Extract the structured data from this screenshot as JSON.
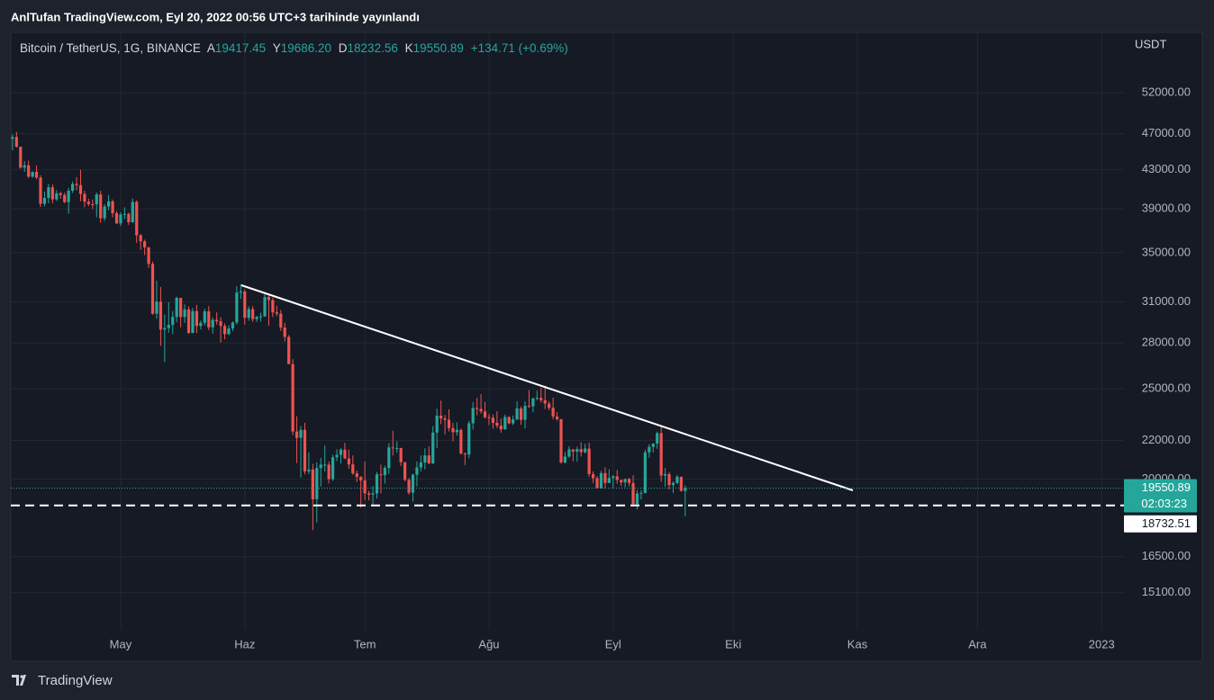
{
  "header": {
    "title": "AnlTufan TradingView.com, Eyl 20, 2022 00:56 UTC+3 tarihinde yayınlandı"
  },
  "footer": {
    "brand": "TradingView"
  },
  "chart_data": {
    "type": "candlestick",
    "unit": "USDT",
    "legend": {
      "symbol": "Bitcoin / TetherUS, 1G, BINANCE",
      "items": [
        {
          "label": "A",
          "value": "19417.45"
        },
        {
          "label": "Y",
          "value": "19686.20"
        },
        {
          "label": "D",
          "value": "18232.56"
        },
        {
          "label": "K",
          "value": "19550.89"
        }
      ],
      "change": "+134.71 (+0.69%)"
    },
    "up_color": "#26a69a",
    "down_color": "#ef5350",
    "log": true,
    "grid": true,
    "ylim": [
      13770,
      60370
    ],
    "yticks": [
      {
        "value": 15100,
        "label": "15100.00"
      },
      {
        "value": 16500,
        "label": "16500.00"
      },
      {
        "value": 20000,
        "label": "20000.00"
      },
      {
        "value": 22000,
        "label": "22000.00"
      },
      {
        "value": 25000,
        "label": "25000.00"
      },
      {
        "value": 28000,
        "label": "28000.00"
      },
      {
        "value": 31000,
        "label": "31000.00"
      },
      {
        "value": 35000,
        "label": "35000.00"
      },
      {
        "value": 39000,
        "label": "39000.00"
      },
      {
        "value": 43000,
        "label": "43000.00"
      },
      {
        "value": 47000,
        "label": "47000.00"
      },
      {
        "value": 52000,
        "label": "52000.00"
      }
    ],
    "last_price": {
      "value": 19550.89,
      "label": "19550.89",
      "countdown": "02:03:23"
    },
    "hline": {
      "value": 18732.51,
      "label": "18732.51"
    },
    "categories": [
      null,
      null,
      null,
      null,
      null,
      null,
      null,
      null,
      null,
      null,
      null,
      null,
      null,
      null,
      null,
      null,
      null,
      null,
      null,
      null,
      null,
      null,
      null,
      null,
      null,
      null,
      null,
      "May",
      null,
      null,
      null,
      null,
      null,
      null,
      null,
      null,
      null,
      null,
      null,
      null,
      null,
      null,
      null,
      null,
      null,
      null,
      null,
      null,
      null,
      null,
      null,
      null,
      null,
      null,
      null,
      null,
      null,
      null,
      "Haz",
      null,
      null,
      null,
      null,
      null,
      null,
      null,
      null,
      null,
      null,
      null,
      null,
      null,
      null,
      null,
      null,
      null,
      null,
      null,
      null,
      null,
      null,
      null,
      null,
      null,
      null,
      null,
      null,
      null,
      "Tem",
      null,
      null,
      null,
      null,
      null,
      null,
      null,
      null,
      null,
      null,
      null,
      null,
      null,
      null,
      null,
      null,
      null,
      null,
      null,
      null,
      null,
      null,
      null,
      null,
      null,
      null,
      null,
      null,
      null,
      null,
      "Ağu",
      null,
      null,
      null,
      null,
      null,
      null,
      null,
      null,
      null,
      null,
      null,
      null,
      null,
      null,
      null,
      null,
      null,
      null,
      null,
      null,
      null,
      null,
      null,
      null,
      null,
      null,
      null,
      null,
      null,
      null,
      "Eyl",
      null,
      null,
      null,
      null,
      null,
      null,
      null,
      null,
      null,
      null,
      null,
      null,
      null,
      null,
      null,
      null,
      null,
      null,
      null,
      null,
      null,
      null,
      null,
      null,
      null,
      null,
      null,
      null,
      null,
      "Eki",
      null,
      null,
      null,
      null,
      null,
      null,
      null,
      null,
      null,
      null,
      null,
      null,
      null,
      null,
      null,
      null,
      null,
      null,
      null,
      null,
      null,
      null,
      null,
      null,
      null,
      null,
      null,
      null,
      null,
      null,
      "Kas",
      null,
      null,
      null,
      null,
      null,
      null,
      null,
      null,
      null,
      null,
      null,
      null,
      null,
      null,
      null,
      null,
      null,
      null,
      null,
      null,
      null,
      null,
      null,
      null,
      null,
      null,
      null,
      null,
      null,
      "Ara",
      null,
      null,
      null,
      null,
      null,
      null,
      null,
      null,
      null,
      null,
      null,
      null,
      null,
      null,
      null,
      null,
      null,
      null,
      null,
      null,
      null,
      null,
      null,
      null,
      null,
      null,
      null,
      null,
      null,
      null,
      "2023",
      null,
      null,
      null,
      null,
      null
    ],
    "ohlc": [
      [
        46400,
        46900,
        45100,
        46600
      ],
      [
        46600,
        47200,
        45400,
        45500
      ],
      [
        45500,
        45500,
        43100,
        43200
      ],
      [
        43200,
        43900,
        42750,
        43450
      ],
      [
        43450,
        43970,
        42120,
        42250
      ],
      [
        42250,
        42800,
        42130,
        42750
      ],
      [
        42750,
        43430,
        42000,
        42150
      ],
      [
        42150,
        42400,
        39200,
        39500
      ],
      [
        39500,
        40700,
        39250,
        40080
      ],
      [
        40080,
        41500,
        39550,
        41150
      ],
      [
        41150,
        41450,
        39550,
        39940
      ],
      [
        39940,
        40860,
        39770,
        40550
      ],
      [
        40550,
        40700,
        40010,
        40380
      ],
      [
        40380,
        40600,
        39550,
        39680
      ],
      [
        39680,
        41100,
        38550,
        40800
      ],
      [
        40800,
        41750,
        40580,
        41500
      ],
      [
        41500,
        42200,
        40850,
        41370
      ],
      [
        41370,
        42970,
        39750,
        40480
      ],
      [
        40480,
        40800,
        39170,
        39710
      ],
      [
        39710,
        39990,
        39280,
        39470
      ],
      [
        39470,
        39930,
        39000,
        39450
      ],
      [
        39450,
        40620,
        38200,
        40430
      ],
      [
        40430,
        40800,
        37700,
        38120
      ],
      [
        38120,
        39470,
        37880,
        39240
      ],
      [
        39240,
        40370,
        38880,
        39740
      ],
      [
        39740,
        39920,
        38200,
        38600
      ],
      [
        38600,
        38800,
        37600,
        37630
      ],
      [
        37630,
        38680,
        37390,
        38470
      ],
      [
        38470,
        39170,
        38050,
        38530
      ],
      [
        38530,
        38650,
        37500,
        37750
      ],
      [
        37750,
        40020,
        37680,
        39690
      ],
      [
        39690,
        39850,
        35860,
        36550
      ],
      [
        36550,
        36650,
        35260,
        36010
      ],
      [
        36010,
        36150,
        34800,
        35470
      ],
      [
        35470,
        35500,
        33700,
        34040
      ],
      [
        34040,
        34240,
        30030,
        30100
      ],
      [
        30100,
        32660,
        29730,
        31010
      ],
      [
        31010,
        32160,
        27800,
        28940
      ],
      [
        28940,
        30030,
        26700,
        29050
      ],
      [
        29050,
        30970,
        28720,
        29280
      ],
      [
        29280,
        30300,
        28620,
        29860
      ],
      [
        29860,
        31400,
        29470,
        31300
      ],
      [
        31300,
        31300,
        29100,
        29850
      ],
      [
        29850,
        30800,
        29420,
        30420
      ],
      [
        30420,
        30660,
        28640,
        28700
      ],
      [
        28700,
        30530,
        28680,
        30300
      ],
      [
        30300,
        30760,
        28700,
        29200
      ],
      [
        29200,
        29600,
        28950,
        29430
      ],
      [
        29430,
        30480,
        29230,
        30280
      ],
      [
        30280,
        30670,
        28900,
        29100
      ],
      [
        29100,
        29830,
        28650,
        29650
      ],
      [
        29650,
        30200,
        29300,
        29540
      ],
      [
        29540,
        29850,
        28020,
        29200
      ],
      [
        29200,
        29380,
        28250,
        28620
      ],
      [
        28620,
        29240,
        28560,
        29020
      ],
      [
        29020,
        29520,
        28830,
        29450
      ],
      [
        29450,
        32220,
        29300,
        31720
      ],
      [
        31720,
        32400,
        31220,
        31800
      ],
      [
        31800,
        31960,
        29300,
        29800
      ],
      [
        29800,
        30650,
        29580,
        30450
      ],
      [
        30450,
        30680,
        29500,
        29700
      ],
      [
        29700,
        29940,
        29480,
        29860
      ],
      [
        29860,
        30180,
        29520,
        29900
      ],
      [
        29900,
        31760,
        29880,
        31370
      ],
      [
        31370,
        31560,
        29220,
        31130
      ],
      [
        31130,
        31330,
        29850,
        30200
      ],
      [
        30200,
        30700,
        29930,
        30100
      ],
      [
        30100,
        30380,
        28850,
        29090
      ],
      [
        29090,
        29440,
        28100,
        28420
      ],
      [
        28420,
        28550,
        26560,
        26570
      ],
      [
        26570,
        26900,
        22300,
        22490
      ],
      [
        22490,
        23360,
        20800,
        22140
      ],
      [
        22140,
        22800,
        20070,
        22580
      ],
      [
        22580,
        22980,
        20230,
        20380
      ],
      [
        20380,
        21360,
        20240,
        20470
      ],
      [
        20470,
        20760,
        17620,
        19020
      ],
      [
        19020,
        20840,
        17960,
        20550
      ],
      [
        20550,
        21060,
        19630,
        20720
      ],
      [
        20720,
        21720,
        20360,
        20720
      ],
      [
        20720,
        20880,
        19770,
        19990
      ],
      [
        19990,
        21230,
        19900,
        21100
      ],
      [
        21100,
        21520,
        20900,
        21230
      ],
      [
        21230,
        21600,
        20780,
        21500
      ],
      [
        21500,
        21870,
        21010,
        21040
      ],
      [
        21040,
        21500,
        20510,
        20730
      ],
      [
        20730,
        21200,
        20200,
        20280
      ],
      [
        20280,
        20420,
        19850,
        20100
      ],
      [
        20100,
        20140,
        18630,
        19930
      ],
      [
        19930,
        20880,
        18980,
        19300
      ],
      [
        19300,
        19420,
        18970,
        19240
      ],
      [
        19240,
        19650,
        18780,
        19300
      ],
      [
        19300,
        20350,
        19050,
        20230
      ],
      [
        20230,
        20720,
        19300,
        20190
      ],
      [
        20190,
        20670,
        19770,
        20550
      ],
      [
        20550,
        21850,
        20250,
        21620
      ],
      [
        21620,
        22530,
        21190,
        21580
      ],
      [
        21580,
        21950,
        21330,
        21590
      ],
      [
        21590,
        21600,
        20650,
        20850
      ],
      [
        20850,
        20850,
        19880,
        19960
      ],
      [
        19960,
        20050,
        19240,
        19330
      ],
      [
        19330,
        20260,
        18910,
        20210
      ],
      [
        20210,
        20880,
        19640,
        20580
      ],
      [
        20580,
        21200,
        20380,
        20830
      ],
      [
        20830,
        21580,
        20480,
        21200
      ],
      [
        21200,
        21680,
        20760,
        20780
      ],
      [
        20780,
        22780,
        20760,
        22430
      ],
      [
        22430,
        23800,
        21580,
        23390
      ],
      [
        23390,
        24280,
        22900,
        23230
      ],
      [
        23230,
        23430,
        22340,
        23150
      ],
      [
        23150,
        23760,
        22500,
        22680
      ],
      [
        22680,
        22990,
        21950,
        22450
      ],
      [
        22450,
        23000,
        22260,
        22580
      ],
      [
        22580,
        22660,
        21250,
        21300
      ],
      [
        21300,
        21350,
        20700,
        21250
      ],
      [
        21250,
        23100,
        21050,
        22950
      ],
      [
        22950,
        24200,
        22600,
        23840
      ],
      [
        23840,
        24440,
        23420,
        23780
      ],
      [
        23780,
        24670,
        23500,
        23640
      ],
      [
        23640,
        24200,
        23220,
        23300
      ],
      [
        23300,
        23500,
        22850,
        23270
      ],
      [
        23270,
        23450,
        22650,
        22980
      ],
      [
        22980,
        23650,
        22680,
        22820
      ],
      [
        22820,
        23220,
        22430,
        22610
      ],
      [
        22610,
        23450,
        22590,
        23310
      ],
      [
        23310,
        23360,
        22900,
        22950
      ],
      [
        22950,
        23400,
        22850,
        23170
      ],
      [
        23170,
        24240,
        23150,
        23810
      ],
      [
        23810,
        23920,
        22870,
        23150
      ],
      [
        23150,
        24230,
        22660,
        23960
      ],
      [
        23960,
        24920,
        23850,
        23940
      ],
      [
        23940,
        24460,
        23580,
        24400
      ],
      [
        24400,
        24880,
        24300,
        24440
      ],
      [
        24440,
        25050,
        24150,
        24300
      ],
      [
        24300,
        25200,
        23780,
        24100
      ],
      [
        24100,
        24240,
        23700,
        23850
      ],
      [
        23850,
        24450,
        23180,
        23340
      ],
      [
        23340,
        23600,
        23100,
        23190
      ],
      [
        23190,
        23200,
        20770,
        20830
      ],
      [
        20830,
        21380,
        20780,
        21140
      ],
      [
        21140,
        21680,
        21080,
        21520
      ],
      [
        21520,
        21520,
        20890,
        21400
      ],
      [
        21400,
        21660,
        20870,
        21530
      ],
      [
        21530,
        21900,
        21140,
        21370
      ],
      [
        21370,
        21820,
        21300,
        21560
      ],
      [
        21560,
        21880,
        20100,
        20240
      ],
      [
        20240,
        20380,
        19800,
        20040
      ],
      [
        20040,
        20150,
        19550,
        19550
      ],
      [
        19550,
        20400,
        19530,
        20290
      ],
      [
        20290,
        20580,
        19550,
        19800
      ],
      [
        19800,
        20480,
        19800,
        20050
      ],
      [
        20050,
        20200,
        19560,
        20130
      ],
      [
        20130,
        20450,
        19760,
        19950
      ],
      [
        19950,
        19960,
        19650,
        19830
      ],
      [
        19830,
        20000,
        19600,
        20000
      ],
      [
        20000,
        20050,
        19640,
        19800
      ],
      [
        19800,
        20180,
        18680,
        18790
      ],
      [
        18790,
        19460,
        18540,
        19290
      ],
      [
        19290,
        19450,
        19010,
        19320
      ],
      [
        19320,
        21500,
        19300,
        21360
      ],
      [
        21360,
        21800,
        21080,
        21650
      ],
      [
        21650,
        21850,
        21350,
        21830
      ],
      [
        21830,
        22490,
        21550,
        22400
      ],
      [
        22400,
        22800,
        19860,
        20170
      ],
      [
        20170,
        20550,
        19620,
        20240
      ],
      [
        20240,
        20340,
        19500,
        19700
      ],
      [
        19700,
        19880,
        19320,
        19800
      ],
      [
        19800,
        20200,
        19750,
        20110
      ],
      [
        20110,
        20110,
        19380,
        19420
      ],
      [
        19417.45,
        19686.2,
        18232.56,
        19550.89
      ],
      null,
      null,
      null,
      null,
      null,
      null,
      null,
      null,
      null,
      null,
      null,
      null,
      null,
      null,
      null,
      null,
      null,
      null,
      null,
      null,
      null,
      null,
      null,
      null,
      null,
      null,
      null,
      null,
      null,
      null,
      null,
      null,
      null,
      null,
      null,
      null,
      null,
      null,
      null,
      null,
      null,
      null,
      null,
      null,
      null,
      null,
      null,
      null,
      null,
      null,
      null,
      null,
      null,
      null,
      null,
      null,
      null,
      null,
      null,
      null,
      null,
      null,
      null,
      null,
      null,
      null,
      null,
      null,
      null,
      null,
      null,
      null,
      null,
      null,
      null,
      null,
      null,
      null,
      null,
      null,
      null,
      null,
      null,
      null,
      null,
      null,
      null,
      null,
      null,
      null,
      null,
      null,
      null,
      null,
      null,
      null,
      null,
      null,
      null,
      null,
      null,
      null,
      null,
      null,
      null,
      null,
      null,
      null,
      null
    ]
  }
}
